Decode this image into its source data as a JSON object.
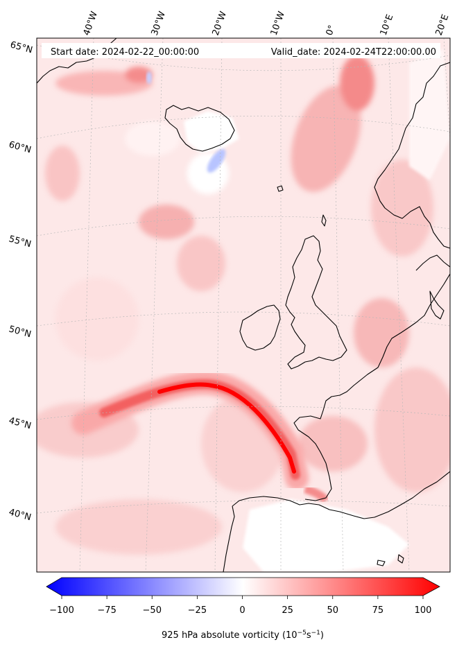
{
  "header": {
    "start_date": "Start date: 2024-02-22_00:00:00",
    "valid_date": "Valid_date: 2024-02-24T22:00:00.00"
  },
  "longitude_labels": [
    "40°W",
    "30°W",
    "20°W",
    "10°W",
    "0°",
    "10°E",
    "20°E"
  ],
  "latitude_labels": [
    "65°N",
    "60°N",
    "55°N",
    "50°N",
    "45°N",
    "40°N"
  ],
  "colorbar": {
    "min": -100,
    "max": 100,
    "ticks": [
      "−100",
      "−75",
      "−50",
      "−25",
      "0",
      "25",
      "50",
      "75",
      "100"
    ],
    "label_main": "925 hPa absolute vorticity (10",
    "label_exp1": "−5",
    "label_mid": "s",
    "label_exp2": "−1",
    "label_end": ")",
    "low_color": "#0000ff",
    "mid_color": "#ffffff",
    "high_color": "#ff0000"
  },
  "colors": {
    "background_field": "#fde6e6",
    "land_outline": "#000000",
    "gridline": "#b0b0b0"
  }
}
